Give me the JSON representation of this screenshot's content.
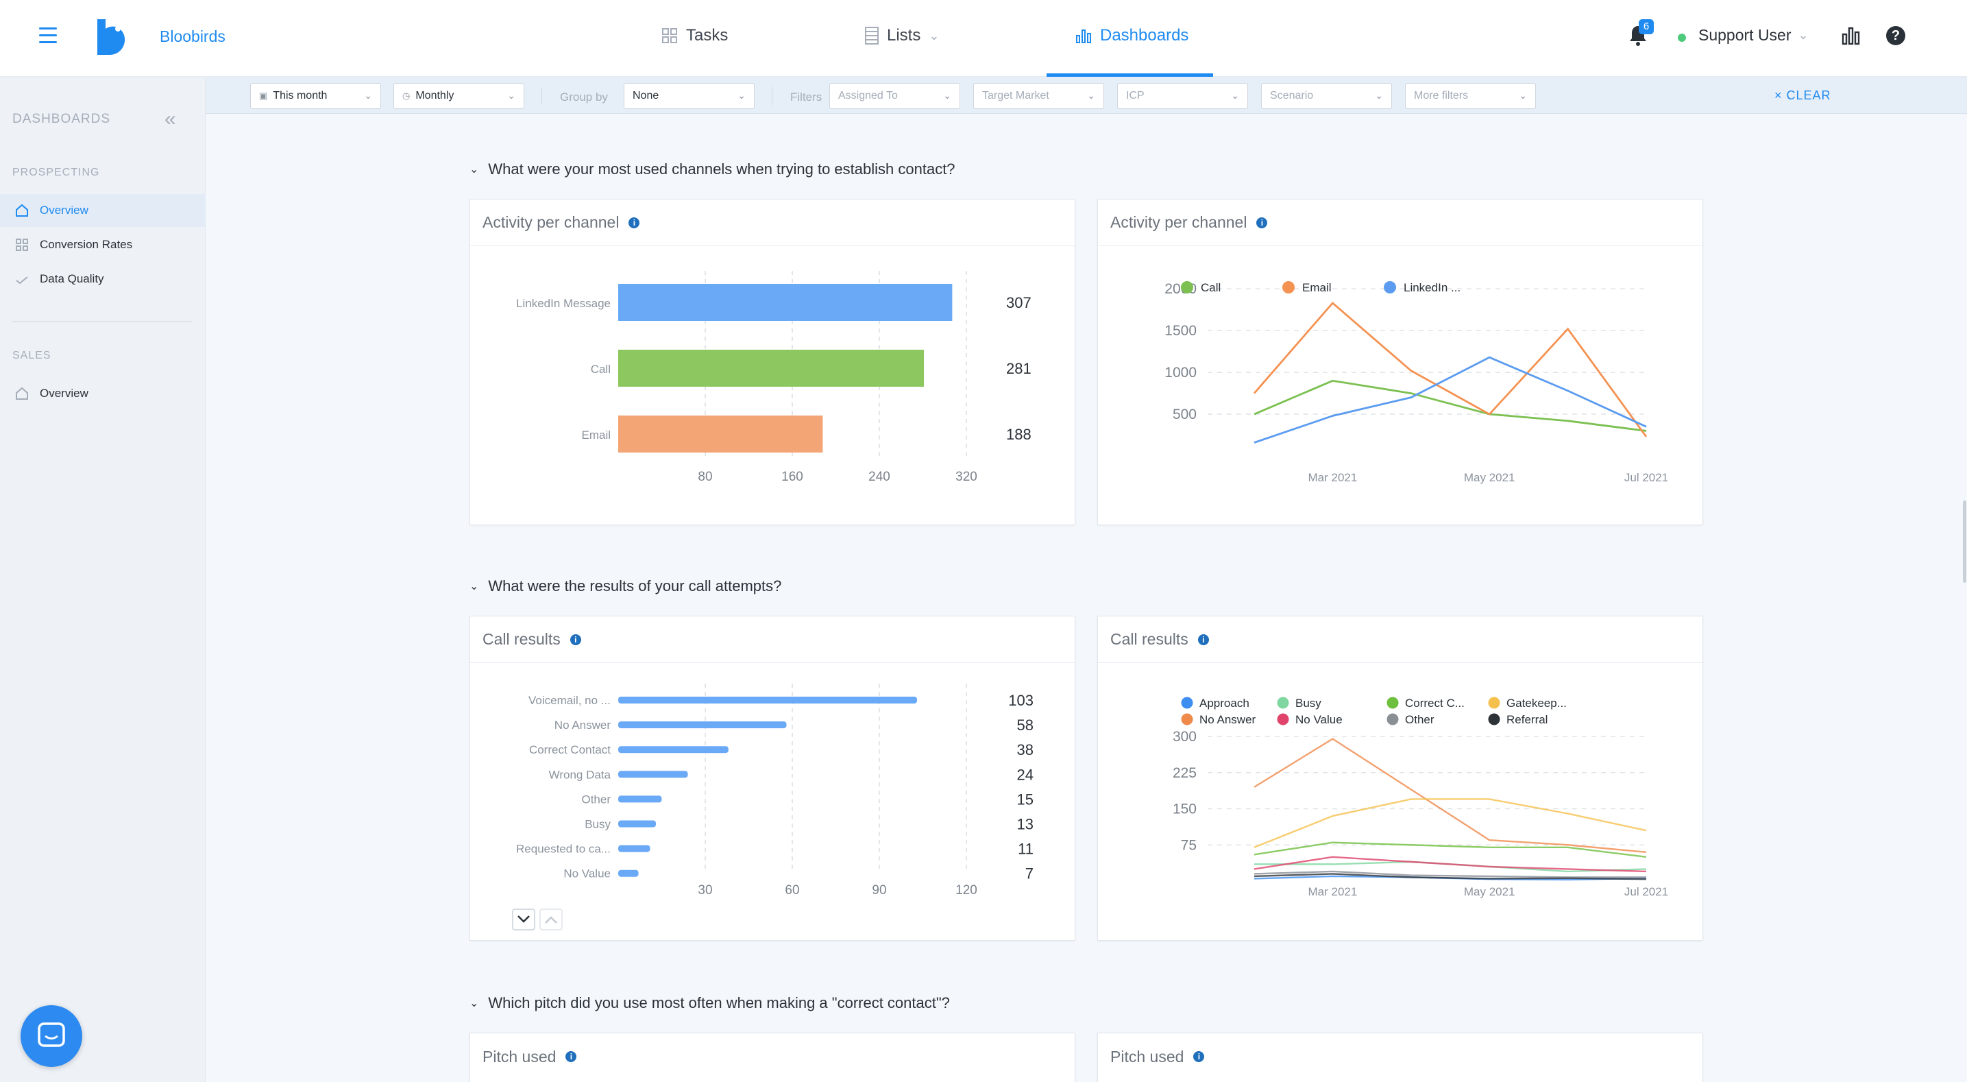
{
  "app": {
    "brand": "Bloobirds"
  },
  "nav": {
    "tasks": "Tasks",
    "lists": "Lists",
    "dashboards": "Dashboards"
  },
  "header": {
    "notifications_count": "6",
    "user": "Support User"
  },
  "sidebar": {
    "title": "DASHBOARDS",
    "prospecting_label": "PROSPECTING",
    "prospecting_items": [
      "Overview",
      "Conversion Rates",
      "Data Quality"
    ],
    "sales_label": "SALES",
    "sales_items": [
      "Overview"
    ]
  },
  "filters": {
    "date_range": "This month",
    "granularity": "Monthly",
    "group_by_label": "Group by",
    "group_by_value": "None",
    "filters_label": "Filters",
    "assigned_to": "Assigned To",
    "target_market": "Target Market",
    "icp": "ICP",
    "scenario": "Scenario",
    "more_filters": "More filters",
    "clear": "CLEAR"
  },
  "sections": {
    "s1": "What were your most used channels when trying to establish contact?",
    "s2": "What were the results of your call attempts?",
    "s3": "Which pitch did you use most often when making a \"correct contact\"?"
  },
  "cards": {
    "c1": "Activity per channel",
    "c2": "Activity per channel",
    "c3": "Call results",
    "c4": "Call results",
    "c5": "Pitch used",
    "c6": "Pitch used"
  },
  "colors": {
    "blue": "#6aa9f6",
    "green": "#8cc85f",
    "orange": "#f3a576",
    "accent": "#1f8bf0"
  },
  "chart_data": [
    {
      "type": "bar",
      "orientation": "horizontal",
      "categories": [
        "LinkedIn Message",
        "Call",
        "Email"
      ],
      "values": [
        307,
        281,
        188
      ],
      "colors": [
        "#6aa9f6",
        "#8cc85f",
        "#f3a576"
      ],
      "xticks": [
        80,
        160,
        240,
        320
      ],
      "xlim": [
        0,
        320
      ]
    },
    {
      "type": "line",
      "series": [
        {
          "name": "Call",
          "color": "#7cc051",
          "values": [
            500,
            900,
            750,
            500,
            420,
            300
          ]
        },
        {
          "name": "Email",
          "color": "#f49252",
          "values": [
            750,
            1830,
            1020,
            500,
            1520,
            230
          ]
        },
        {
          "name": "LinkedIn ...",
          "color": "#5b9cf0",
          "values": [
            160,
            480,
            700,
            1180,
            780,
            350
          ]
        }
      ],
      "xtick_labels": [
        "Mar 2021",
        "May 2021",
        "Jul 2021"
      ],
      "yticks": [
        500,
        1000,
        1500,
        2000
      ],
      "ylim": [
        0,
        2100
      ],
      "legend": "top-left",
      "grid": true
    },
    {
      "type": "bar",
      "orientation": "horizontal",
      "categories": [
        "Voicemail, no ...",
        "No Answer",
        "Correct Contact",
        "Wrong Data",
        "Other",
        "Busy",
        "Requested to ca...",
        "No Value"
      ],
      "values": [
        103,
        58,
        38,
        24,
        15,
        13,
        11,
        7
      ],
      "xticks": [
        30,
        60,
        90,
        120
      ],
      "xlim": [
        0,
        120
      ]
    },
    {
      "type": "line",
      "series": [
        {
          "name": "Approach",
          "color": "#3d8ef0",
          "values": [
            5,
            10,
            8,
            4,
            3,
            6
          ]
        },
        {
          "name": "No Answer",
          "color": "#f08a4b",
          "values": [
            195,
            295,
            190,
            85,
            75,
            60
          ]
        },
        {
          "name": "Busy",
          "color": "#7fd6a0",
          "values": [
            35,
            35,
            40,
            30,
            20,
            25
          ]
        },
        {
          "name": "No Value",
          "color": "#e0446b",
          "values": [
            25,
            50,
            40,
            30,
            25,
            20
          ]
        },
        {
          "name": "Correct C...",
          "color": "#6fbf3f",
          "values": [
            55,
            80,
            75,
            70,
            70,
            50
          ]
        },
        {
          "name": "Other",
          "color": "#8a8f96",
          "values": [
            15,
            20,
            12,
            10,
            8,
            8
          ]
        },
        {
          "name": "Gatekeep...",
          "color": "#f6c04d",
          "values": [
            70,
            135,
            170,
            170,
            140,
            105
          ]
        },
        {
          "name": "Referral",
          "color": "#2e3338",
          "values": [
            10,
            15,
            8,
            5,
            6,
            4
          ]
        }
      ],
      "xtick_labels": [
        "Mar 2021",
        "May 2021",
        "Jul 2021"
      ],
      "yticks": [
        75,
        150,
        225,
        300
      ],
      "ylim": [
        0,
        310
      ],
      "legend": "top-left",
      "grid": true
    }
  ]
}
